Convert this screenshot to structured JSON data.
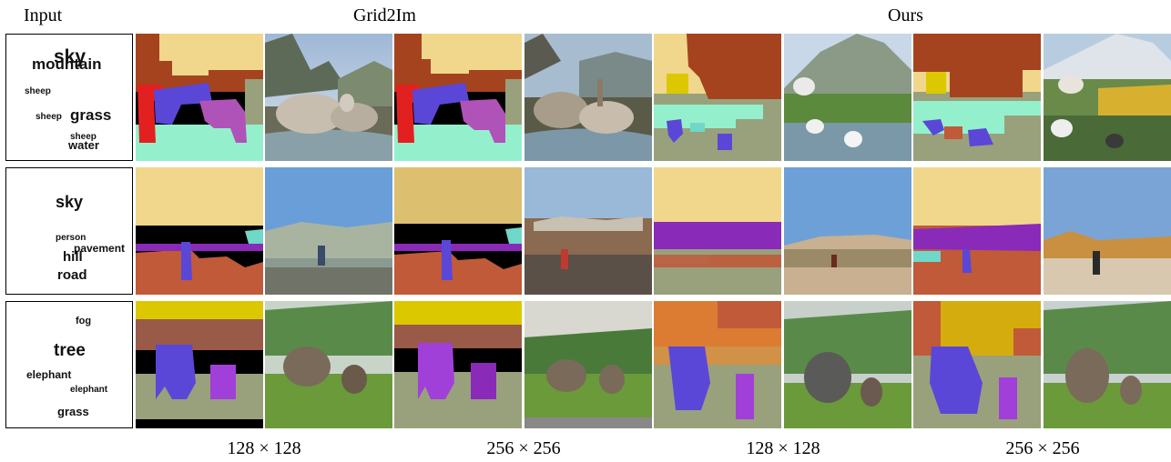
{
  "headers": {
    "input": "Input",
    "grid2im": "Grid2Im",
    "ours": "Ours"
  },
  "footers": [
    "128 × 128",
    "256 × 256",
    "128 × 128",
    "256 × 256"
  ],
  "rows": [
    {
      "words": [
        "sky",
        "mountain",
        "sheep",
        "sheep",
        "grass",
        "sheep",
        "water"
      ]
    },
    {
      "words": [
        "sky",
        "person",
        "pavement",
        "hill",
        "road"
      ]
    },
    {
      "words": [
        "fog",
        "tree",
        "elephant",
        "elephant",
        "grass"
      ]
    }
  ],
  "colors": {
    "sky": "#f0d78c",
    "mountain": "#a5431e",
    "grass": "#99a17c",
    "water": "#94f0cc",
    "sheep_red": "#e32020",
    "sheep_blue": "#5a47d8",
    "sheep_purple": "#b053b8",
    "pavement": "#6fd8c8",
    "person_purple": "#8a2ab8",
    "road_brown": "#c05a38",
    "fog": "#dcc800",
    "tree_brown": "#9a5a48",
    "elephant_blue": "#5a47d8",
    "elephant_violet": "#a040d8"
  }
}
